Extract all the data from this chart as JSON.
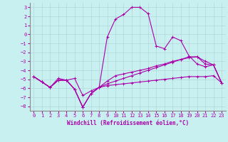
{
  "xlabel": "Windchill (Refroidissement éolien,°C)",
  "background_color": "#c8f0f0",
  "grid_color": "#b0d8d8",
  "line_color": "#aa00aa",
  "xlim": [
    -0.5,
    23.5
  ],
  "ylim": [
    -8.5,
    3.5
  ],
  "xticks": [
    0,
    1,
    2,
    3,
    4,
    5,
    6,
    7,
    8,
    9,
    10,
    11,
    12,
    13,
    14,
    15,
    16,
    17,
    18,
    19,
    20,
    21,
    22,
    23
  ],
  "yticks": [
    -8,
    -7,
    -6,
    -5,
    -4,
    -3,
    -2,
    -1,
    0,
    1,
    2,
    3
  ],
  "series1_x": [
    0,
    1,
    2,
    3,
    4,
    5,
    6,
    7,
    8,
    9,
    10,
    11,
    12,
    13,
    14,
    15,
    16,
    17,
    18,
    19,
    20,
    21,
    22,
    23
  ],
  "series1_y": [
    -4.7,
    -5.3,
    -5.9,
    -5.1,
    -5.1,
    -6.1,
    -8.1,
    -6.6,
    -5.9,
    -0.3,
    1.7,
    2.2,
    3.0,
    3.0,
    2.3,
    -1.3,
    -1.6,
    -0.3,
    -0.7,
    -2.4,
    -3.3,
    -3.6,
    -3.4,
    -5.4
  ],
  "series2_x": [
    0,
    1,
    2,
    3,
    4,
    5,
    6,
    7,
    8,
    9,
    10,
    11,
    12,
    13,
    14,
    15,
    16,
    17,
    18,
    19,
    20,
    21,
    22,
    23
  ],
  "series2_y": [
    -4.7,
    -5.3,
    -5.9,
    -5.1,
    -5.1,
    -6.1,
    -8.1,
    -6.6,
    -5.9,
    -5.7,
    -5.6,
    -5.5,
    -5.4,
    -5.3,
    -5.2,
    -5.1,
    -5.0,
    -4.9,
    -4.8,
    -4.7,
    -4.7,
    -4.7,
    -4.6,
    -5.4
  ],
  "series3_x": [
    0,
    1,
    2,
    3,
    4,
    5,
    6,
    7,
    8,
    9,
    10,
    11,
    12,
    13,
    14,
    15,
    16,
    17,
    18,
    19,
    20,
    21,
    22,
    23
  ],
  "series3_y": [
    -4.7,
    -5.3,
    -5.9,
    -5.1,
    -5.1,
    -6.1,
    -8.1,
    -6.6,
    -5.9,
    -5.5,
    -5.2,
    -4.9,
    -4.6,
    -4.3,
    -4.0,
    -3.7,
    -3.4,
    -3.1,
    -2.8,
    -2.5,
    -2.5,
    -3.3,
    -3.4,
    -5.4
  ],
  "series4_x": [
    0,
    1,
    2,
    3,
    4,
    5,
    6,
    7,
    8,
    9,
    10,
    11,
    12,
    13,
    14,
    15,
    16,
    17,
    18,
    19,
    20,
    21,
    22,
    23
  ],
  "series4_y": [
    -4.7,
    -5.3,
    -5.9,
    -4.9,
    -5.1,
    -4.9,
    -6.8,
    -6.3,
    -5.9,
    -5.2,
    -4.6,
    -4.4,
    -4.2,
    -4.0,
    -3.8,
    -3.5,
    -3.3,
    -3.0,
    -2.8,
    -2.6,
    -2.5,
    -3.0,
    -3.4,
    -5.4
  ],
  "tick_fontsize": 5,
  "xlabel_fontsize": 5.5,
  "linewidth": 0.8,
  "markersize": 3
}
